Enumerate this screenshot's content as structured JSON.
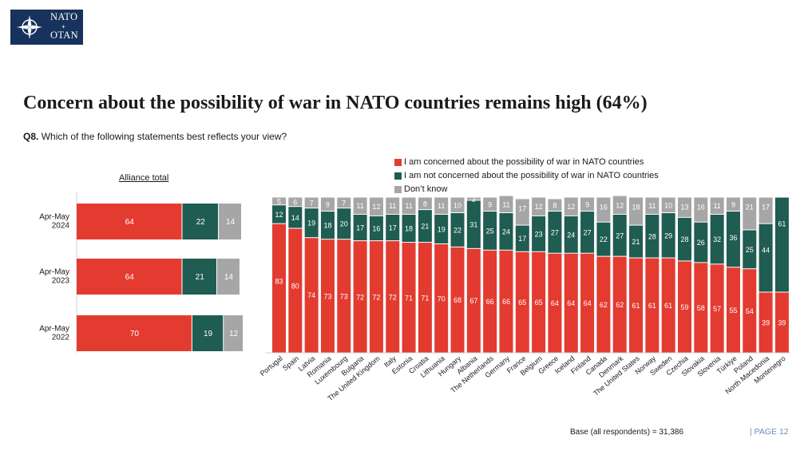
{
  "logo": {
    "line1": "NATO",
    "line2": "OTAN",
    "icon": "nato-compass-rose-icon"
  },
  "title": "Concern about the possibility of war in NATO countries remains high (64%)",
  "question": {
    "code": "Q8.",
    "text": "Which of the following statements best reflects your view?"
  },
  "legend": [
    {
      "label": "I am concerned about the possibility of war in NATO countries",
      "color": "#e33b30"
    },
    {
      "label": "I am not concerned about the possibility of war in NATO countries",
      "color": "#1f5c52"
    },
    {
      "label": "Don’t know",
      "color": "#a6a6a6"
    }
  ],
  "alliance_title": "Alliance total",
  "base_note": "Base (all respondents) = 31,386",
  "page_label": "| PAGE 12",
  "colors": {
    "concerned": "#e33b30",
    "not_concerned": "#1f5c52",
    "dont_know": "#a6a6a6",
    "logo": "#17325c"
  },
  "chart_data": [
    {
      "type": "bar",
      "orientation": "horizontal",
      "stacked": true,
      "title": "Alliance total",
      "categories": [
        "Apr-May 2024",
        "Apr-May 2023",
        "Apr-May 2022"
      ],
      "series": [
        {
          "name": "I am concerned about the possibility of war in NATO countries",
          "values": [
            64,
            64,
            70
          ]
        },
        {
          "name": "I am not concerned about the possibility of war in NATO countries",
          "values": [
            22,
            21,
            19
          ]
        },
        {
          "name": "Don’t know",
          "values": [
            14,
            14,
            12
          ]
        }
      ],
      "xlim": [
        0,
        100
      ]
    },
    {
      "type": "bar",
      "orientation": "vertical",
      "stacked": true,
      "categories": [
        "Portugal",
        "Spain",
        "Latvia",
        "Romania",
        "Luxembourg",
        "Bulgaria",
        "The United Kingdom",
        "Italy",
        "Estonia",
        "Croatia",
        "Lithuania",
        "Hungary",
        "Albania",
        "The Netherlands",
        "Germany",
        "France",
        "Belgium",
        "Greece",
        "Iceland",
        "Finland",
        "Canada",
        "Denmark",
        "The United States",
        "Norway",
        "Sweden",
        "Czechia",
        "Slovakia",
        "Slovenia",
        "Türkiye",
        "Poland",
        "North Macedonia",
        "Montenegro"
      ],
      "series": [
        {
          "name": "I am concerned about the possibility of war in NATO countries",
          "values": [
            83,
            80,
            74,
            73,
            73,
            72,
            72,
            72,
            71,
            71,
            70,
            68,
            67,
            66,
            66,
            65,
            65,
            64,
            64,
            64,
            62,
            62,
            61,
            61,
            61,
            59,
            58,
            57,
            55,
            54,
            39,
            39
          ]
        },
        {
          "name": "I am not concerned about the possibility of war in NATO countries",
          "values": [
            12,
            14,
            19,
            18,
            20,
            17,
            16,
            17,
            18,
            21,
            19,
            22,
            31,
            25,
            24,
            17,
            23,
            27,
            24,
            27,
            22,
            27,
            21,
            28,
            29,
            28,
            26,
            32,
            36,
            25,
            44,
            61
          ]
        },
        {
          "name": "Don’t know",
          "values": [
            5,
            6,
            7,
            9,
            7,
            11,
            12,
            11,
            11,
            8,
            11,
            10,
            2,
            9,
            11,
            17,
            12,
            8,
            12,
            9,
            16,
            12,
            18,
            11,
            10,
            13,
            16,
            11,
            9,
            21,
            17,
            0
          ]
        }
      ],
      "ylim": [
        0,
        100
      ]
    }
  ]
}
